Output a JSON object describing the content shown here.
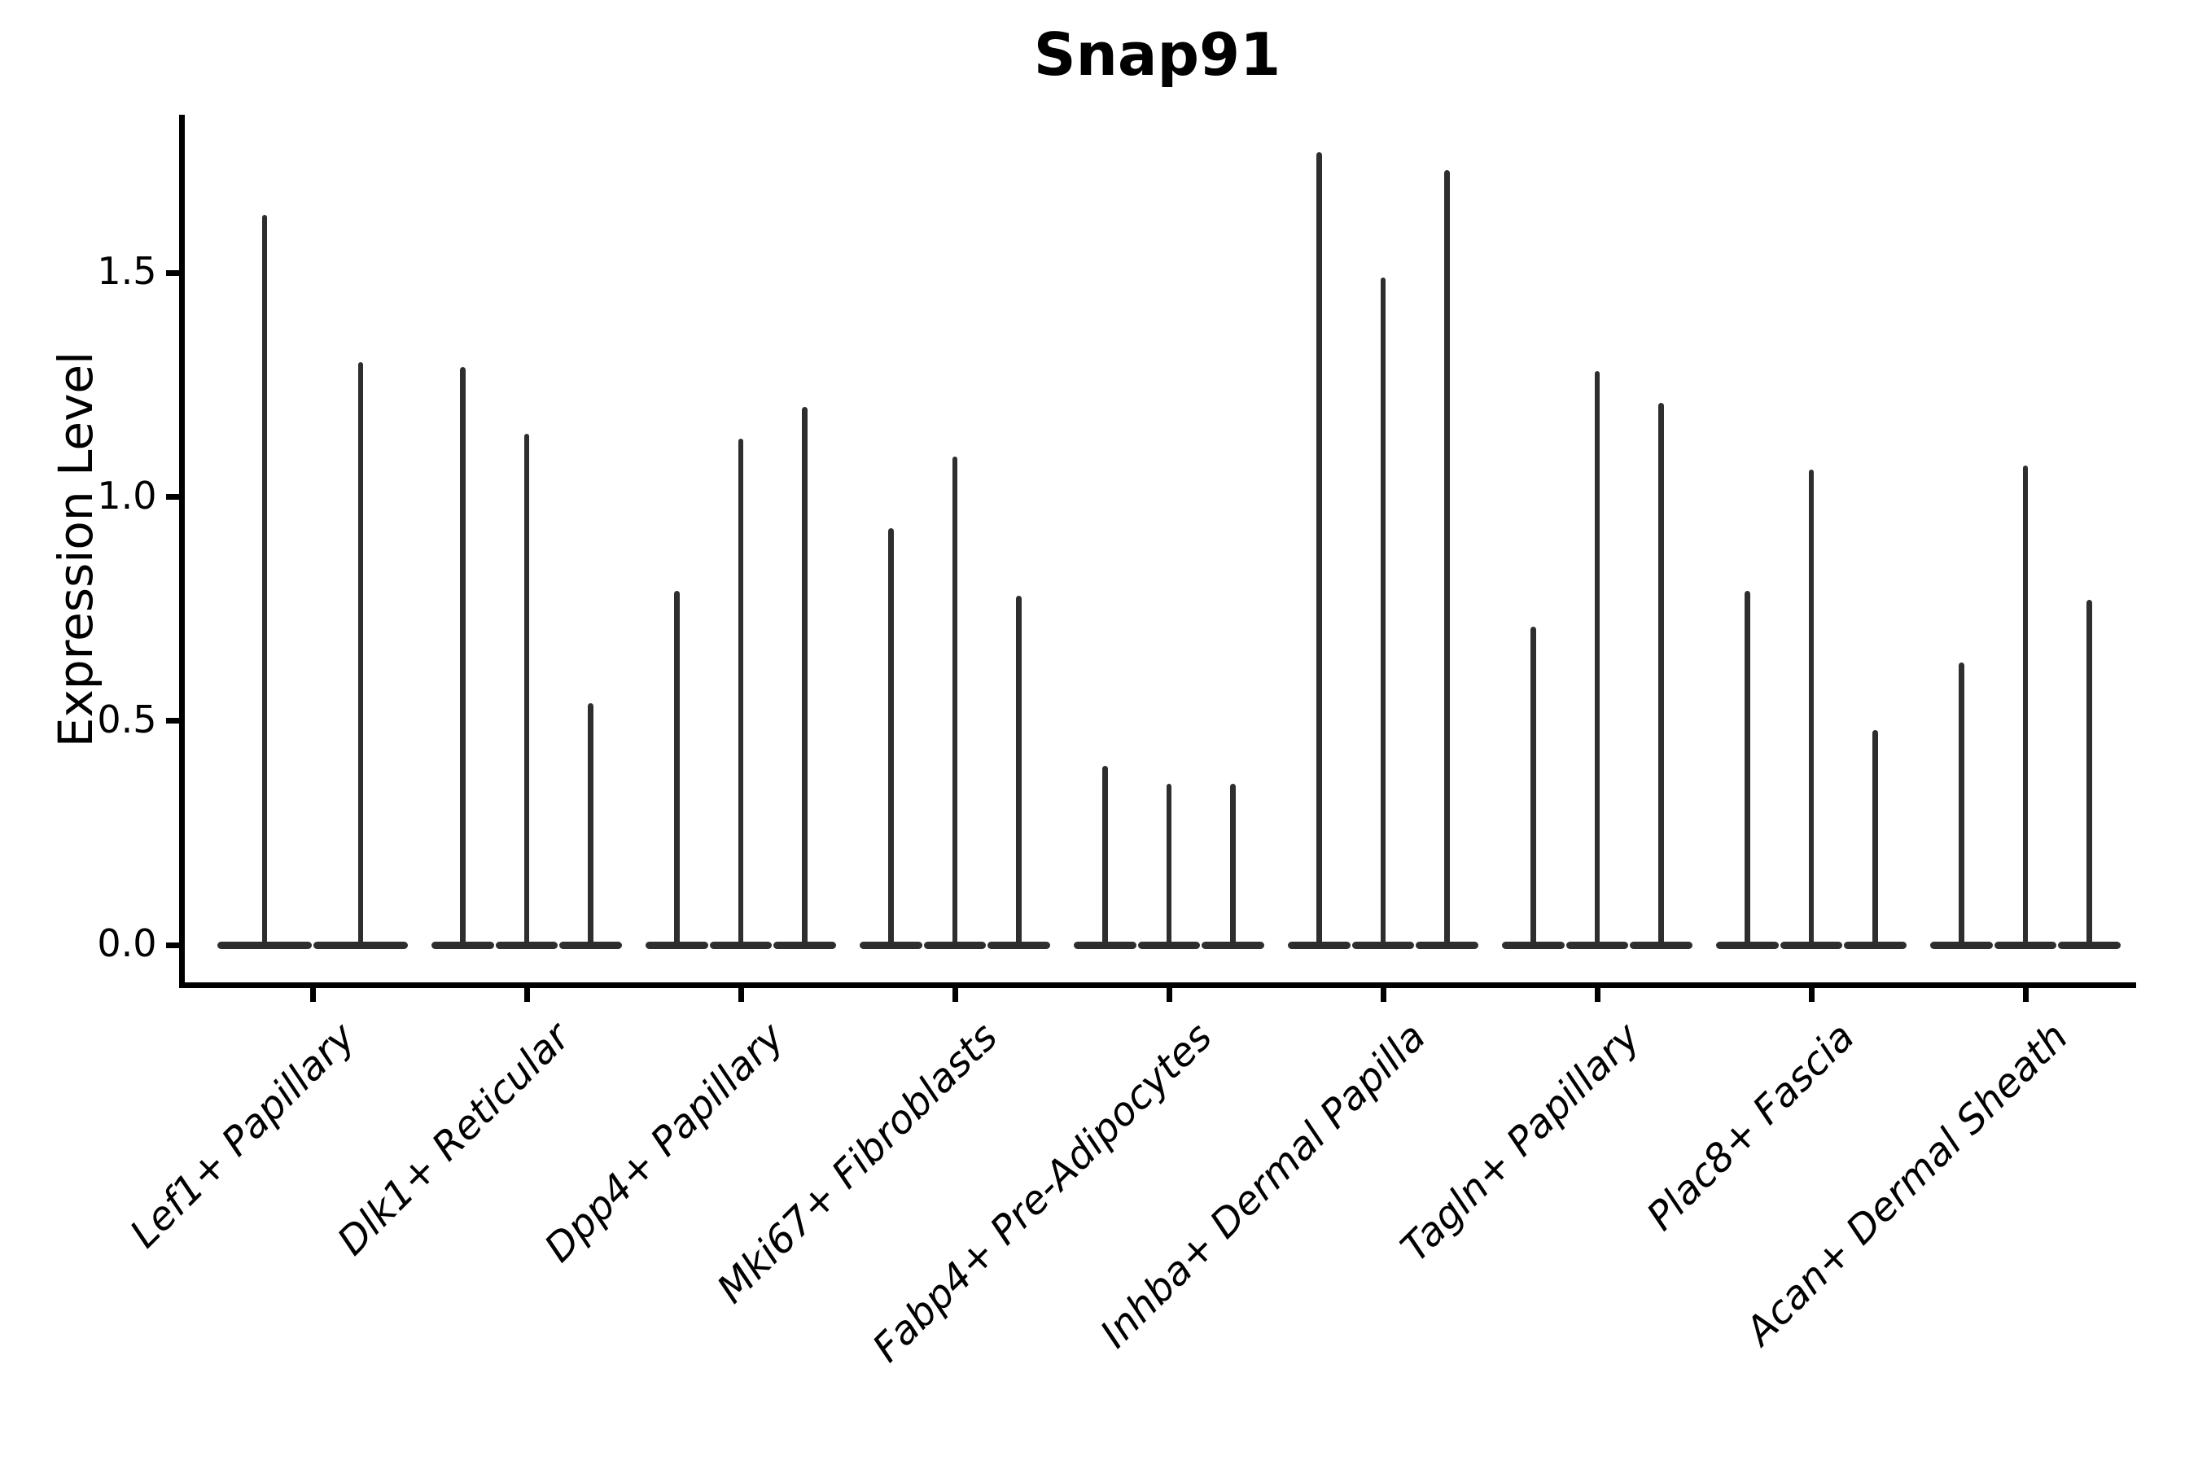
{
  "chart_data": {
    "type": "violin",
    "title": "Snap91",
    "xlabel": "",
    "ylabel": "Expression Level",
    "y_ticks": [
      {
        "value": 0.0,
        "label": "0.0"
      },
      {
        "value": 0.5,
        "label": "0.5"
      },
      {
        "value": 1.0,
        "label": "1.0"
      },
      {
        "value": 1.5,
        "label": "1.5"
      }
    ],
    "ylim": [
      -0.09,
      1.86
    ],
    "grid": false,
    "legend_position": "none",
    "baseline_value": 0.0,
    "style": {
      "violin_color": "#2e2e2e",
      "axis_color": "#000000",
      "background": "#ffffff"
    },
    "groups": [
      {
        "category": "Lef1+ Papillary",
        "violin_maxima": [
          1.63,
          1.3
        ]
      },
      {
        "category": "Dlk1+ Reticular",
        "violin_maxima": [
          1.29,
          1.14,
          0.54
        ]
      },
      {
        "category": "Dpp4+ Papillary",
        "violin_maxima": [
          0.79,
          1.13,
          1.2
        ]
      },
      {
        "category": "Mki67+ Fibroblasts",
        "violin_maxima": [
          0.93,
          1.09,
          0.78
        ]
      },
      {
        "category": "Fabp4+ Pre-Adipocytes",
        "violin_maxima": [
          0.4,
          0.36,
          0.36
        ]
      },
      {
        "category": "Inhba+ Dermal Papilla",
        "violin_maxima": [
          1.77,
          1.49,
          1.73
        ]
      },
      {
        "category": "Tagln+ Papillary",
        "violin_maxima": [
          0.71,
          1.28,
          1.21
        ]
      },
      {
        "category": "Plac8+ Fascia",
        "violin_maxima": [
          0.79,
          1.06,
          0.48
        ]
      },
      {
        "category": "Acan+ Dermal Sheath",
        "violin_maxima": [
          0.63,
          1.07,
          0.77
        ]
      }
    ]
  }
}
